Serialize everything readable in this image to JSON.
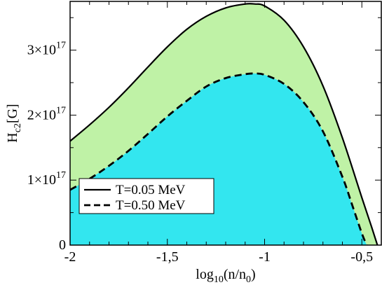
{
  "chart_data": {
    "type": "area",
    "xlabel_base": "log",
    "xlabel_sub": "10",
    "xlabel_rest_open": "(n/n",
    "xlabel_rest_sub": "0",
    "xlabel_rest_close": ")",
    "ylabel_main": "H",
    "ylabel_sub": "c2",
    "ylabel_unit": "[G]",
    "xlim": [
      -2.0,
      -0.4
    ],
    "ylim": [
      0,
      3.75e+17
    ],
    "x_ticks": [
      {
        "value": -2.0,
        "label": "-2"
      },
      {
        "value": -1.5,
        "label": "-1,5"
      },
      {
        "value": -1.0,
        "label": "-1"
      },
      {
        "value": -0.5,
        "label": "-0,5"
      }
    ],
    "y_ticks": [
      {
        "value": 0,
        "label_main": "0",
        "label_exp": ""
      },
      {
        "value": 1e+17,
        "label_main": "1×10",
        "label_exp": "17"
      },
      {
        "value": 2e+17,
        "label_main": "2×10",
        "label_exp": "17"
      },
      {
        "value": 3e+17,
        "label_main": "3×10",
        "label_exp": "17"
      }
    ],
    "legend_position": "lower-left",
    "series": [
      {
        "name": "T=0.05 MeV",
        "line_style": "solid",
        "fill_color": "#bff2a6",
        "x": [
          -2.0,
          -1.9,
          -1.8,
          -1.7,
          -1.6,
          -1.5,
          -1.4,
          -1.3,
          -1.2,
          -1.1,
          -1.05,
          -1.0,
          -0.9,
          -0.8,
          -0.7,
          -0.6,
          -0.5,
          -0.45,
          -0.42
        ],
        "y": [
          1.6e+17,
          1.85e+17,
          2.12e+17,
          2.42e+17,
          2.74e+17,
          3.05e+17,
          3.32e+17,
          3.52e+17,
          3.65e+17,
          3.71e+17,
          3.71e+17,
          3.68e+17,
          3.46e+17,
          3.05e+17,
          2.45e+17,
          1.65e+17,
          7.3e+16,
          2.8e+16,
          0.0
        ]
      },
      {
        "name": "T=0.50 MeV",
        "line_style": "dashed",
        "fill_color": "#33e6ef",
        "x": [
          -2.0,
          -1.9,
          -1.8,
          -1.7,
          -1.6,
          -1.5,
          -1.4,
          -1.3,
          -1.2,
          -1.1,
          -1.05,
          -1.0,
          -0.9,
          -0.8,
          -0.7,
          -0.6,
          -0.55,
          -0.5,
          -0.475
        ],
        "y": [
          8.5e+16,
          1.02e+17,
          1.22e+17,
          1.45e+17,
          1.71e+17,
          1.98e+17,
          2.22e+17,
          2.44e+17,
          2.57e+17,
          2.63e+17,
          2.64e+17,
          2.62e+17,
          2.48e+17,
          2.2e+17,
          1.75e+17,
          1.05e+17,
          6.2e+16,
          1.8e+16,
          0.0
        ]
      }
    ]
  }
}
